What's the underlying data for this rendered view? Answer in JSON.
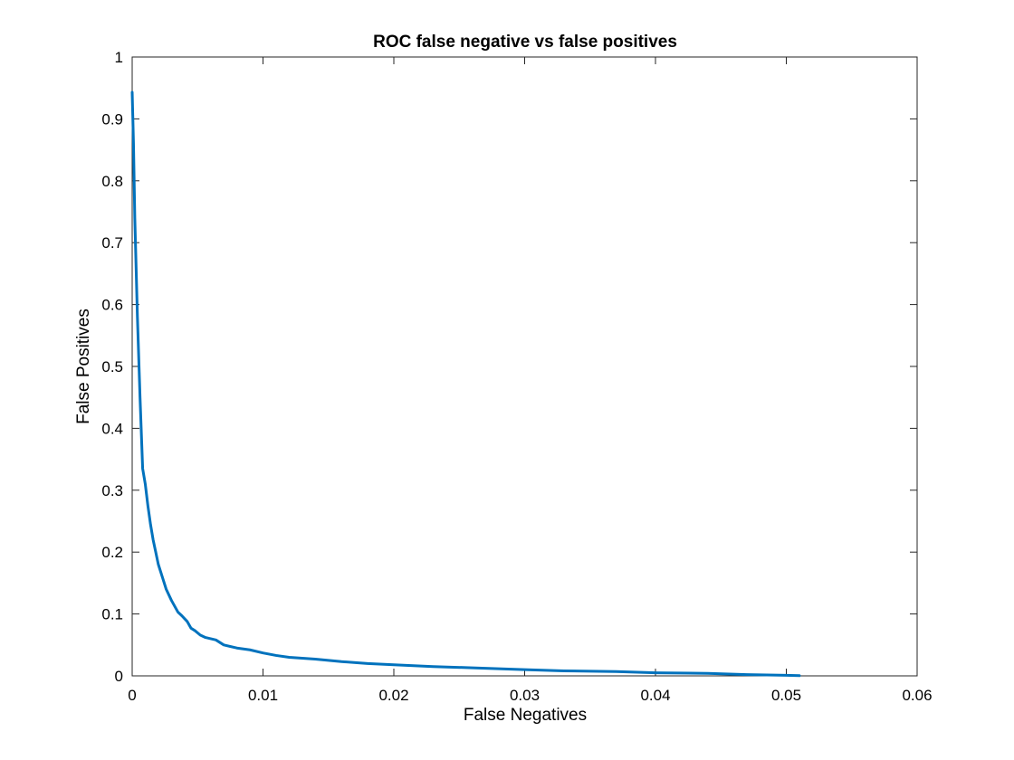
{
  "chart_data": {
    "type": "line",
    "title": "ROC false negative vs false positives",
    "xlabel": "False Negatives",
    "ylabel": "False Positives",
    "xlim": [
      0,
      0.06
    ],
    "ylim": [
      0,
      1
    ],
    "xticks": [
      0,
      0.01,
      0.02,
      0.03,
      0.04,
      0.05,
      0.06
    ],
    "xtick_labels": [
      "0",
      "0.01",
      "0.02",
      "0.03",
      "0.04",
      "0.05",
      "0.06"
    ],
    "yticks": [
      0,
      0.1,
      0.2,
      0.3,
      0.4,
      0.5,
      0.6,
      0.7,
      0.8,
      0.9,
      1
    ],
    "ytick_labels": [
      "0",
      "0.1",
      "0.2",
      "0.3",
      "0.4",
      "0.5",
      "0.6",
      "0.7",
      "0.8",
      "0.9",
      "1"
    ],
    "grid": false,
    "box": true,
    "line_color": "#0072BD",
    "series": [
      {
        "x": [
          0,
          0.0001,
          0.0002,
          0.0004,
          0.0006,
          0.0008,
          0.001,
          0.0012,
          0.0014,
          0.0016,
          0.0018,
          0.002,
          0.0023,
          0.0026,
          0.003,
          0.0035,
          0.0038,
          0.0042,
          0.0045,
          0.0048,
          0.0052,
          0.0056,
          0.006,
          0.0064,
          0.007,
          0.008,
          0.009,
          0.01,
          0.011,
          0.012,
          0.014,
          0.016,
          0.018,
          0.02,
          0.023,
          0.026,
          0.03,
          0.033,
          0.037,
          0.04,
          0.044,
          0.047,
          0.05,
          0.051
        ],
        "y": [
          0.943,
          0.86,
          0.74,
          0.58,
          0.45,
          0.335,
          0.31,
          0.275,
          0.245,
          0.22,
          0.2,
          0.18,
          0.16,
          0.14,
          0.122,
          0.103,
          0.097,
          0.088,
          0.077,
          0.073,
          0.066,
          0.062,
          0.06,
          0.058,
          0.05,
          0.045,
          0.042,
          0.037,
          0.033,
          0.03,
          0.027,
          0.023,
          0.02,
          0.018,
          0.015,
          0.013,
          0.01,
          0.008,
          0.007,
          0.005,
          0.004,
          0.002,
          0.001,
          0.0003
        ]
      }
    ]
  }
}
